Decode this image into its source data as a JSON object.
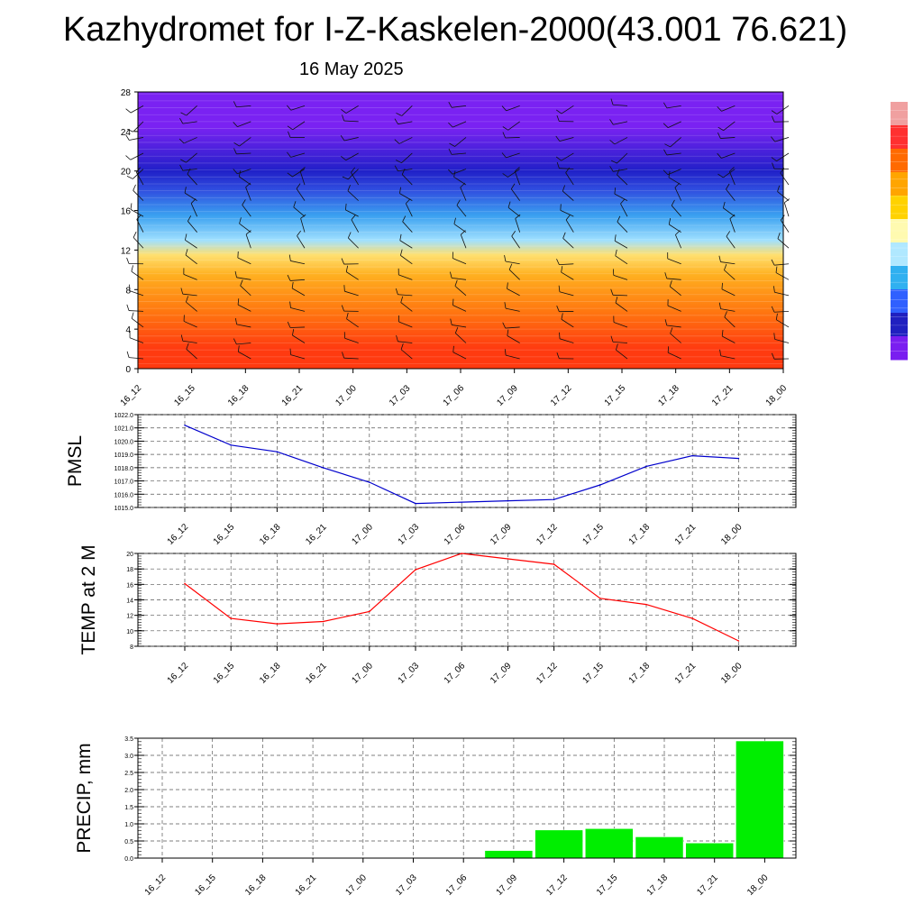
{
  "title": "Kazhydromet for I-Z-Kaskelen-2000(43.001 76.621)",
  "subtitle": "16 May 2025",
  "times": [
    "16_12",
    "16_15",
    "16_18",
    "16_21",
    "17_00",
    "17_03",
    "17_06",
    "17_09",
    "17_12",
    "17_15",
    "17_18",
    "17_21",
    "18_00"
  ],
  "chart_data": [
    {
      "type": "heatmap",
      "description_source": "vertical cross-section with wind barbs",
      "y_ticks": [
        0,
        4,
        8,
        12,
        16,
        20,
        24,
        28
      ],
      "ylim": [
        0,
        28
      ],
      "colorbar_colors": [
        "#f0a0a0",
        "#ff3030",
        "#ff6a00",
        "#ffa500",
        "#ffd200",
        "#fffab0",
        "#b0e8ff",
        "#30b0f0",
        "#3060ff",
        "#2020c0",
        "#7a1ef0"
      ],
      "layers": [
        {
          "from": 0,
          "to": 4,
          "color": "#ff3a10"
        },
        {
          "from": 4,
          "to": 8,
          "color": "#ff7a10"
        },
        {
          "from": 8,
          "to": 11,
          "color": "#ffb020"
        },
        {
          "from": 11,
          "to": 12,
          "color": "#ffe070"
        },
        {
          "from": 12,
          "to": 14,
          "color": "#a0e0ff"
        },
        {
          "from": 14,
          "to": 17,
          "color": "#3aa0f0"
        },
        {
          "from": 17,
          "to": 19,
          "color": "#3050e0"
        },
        {
          "from": 19,
          "to": 21,
          "color": "#2020c8"
        },
        {
          "from": 21,
          "to": 28,
          "color": "#7a22f2"
        }
      ]
    },
    {
      "type": "line",
      "ylabel": "PMSL",
      "ylim": [
        1015.0,
        1022.0
      ],
      "y_ticks": [
        "1015.0",
        "1016.0",
        "1017.0",
        "1018.0",
        "1019.0",
        "1020.0",
        "1021.0",
        "1022.0"
      ],
      "series": [
        {
          "color": "#0000cc",
          "values": [
            1021.2,
            1019.7,
            1019.2,
            1018.0,
            1016.9,
            1015.3,
            1015.4,
            1015.5,
            1015.6,
            1016.7,
            1018.1,
            1018.9,
            1018.7
          ]
        }
      ]
    },
    {
      "type": "line",
      "ylabel": "TEMP at 2 M",
      "ylim": [
        8,
        20
      ],
      "y_ticks": [
        "8",
        "10",
        "12",
        "14",
        "16",
        "18",
        "20"
      ],
      "series": [
        {
          "color": "#ff0000",
          "values": [
            16.1,
            11.6,
            10.9,
            11.2,
            12.5,
            17.9,
            20.0,
            19.3,
            18.6,
            14.2,
            13.4,
            11.6,
            8.7
          ]
        }
      ]
    },
    {
      "type": "bar",
      "ylabel": "PRECIP, mm",
      "ylim": [
        0,
        3.5
      ],
      "y_ticks": [
        "0.0",
        "0.5",
        "1.0",
        "1.5",
        "2.0",
        "2.5",
        "3.0",
        "3.5"
      ],
      "bar_color": "#00ee00",
      "values": [
        0,
        0,
        0,
        0,
        0,
        0,
        0,
        0.22,
        0.82,
        0.86,
        0.62,
        0.44,
        3.42
      ]
    }
  ]
}
